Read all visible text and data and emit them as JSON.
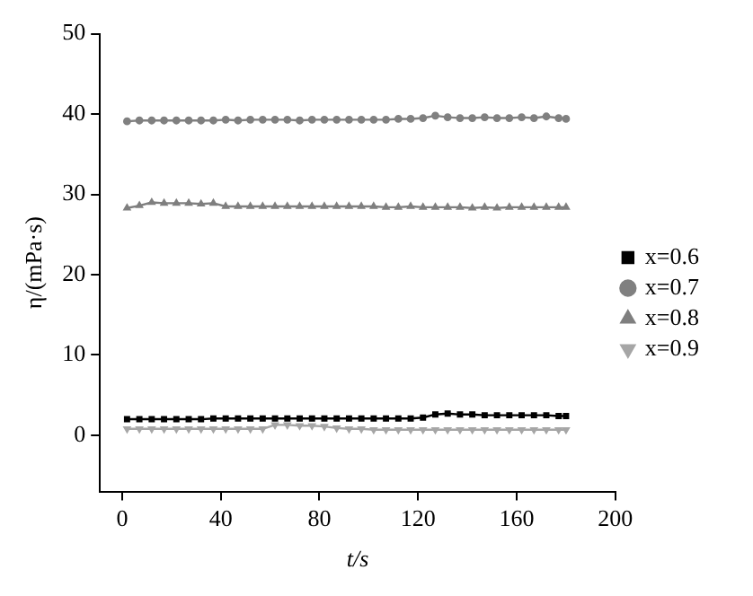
{
  "chart_data": {
    "type": "line",
    "xlabel": "t/s",
    "ylabel": "η/(mPa·s)",
    "xlim": [
      -9,
      200
    ],
    "xticks": [
      0,
      40,
      80,
      120,
      160,
      200
    ],
    "ylim": [
      -7,
      50
    ],
    "yticks": [
      0,
      10,
      20,
      30,
      40,
      50
    ],
    "grid": false,
    "legend": "right",
    "line_style": "solid",
    "x": [
      2,
      7,
      12,
      17,
      22,
      27,
      32,
      37,
      42,
      47,
      52,
      57,
      62,
      67,
      72,
      77,
      82,
      87,
      92,
      97,
      102,
      107,
      112,
      117,
      122,
      127,
      132,
      137,
      142,
      147,
      152,
      157,
      162,
      167,
      172,
      177,
      180
    ],
    "series": [
      {
        "name": "x=0.6",
        "color": "#000000",
        "marker": "square",
        "values": [
          2.0,
          2.0,
          2.0,
          2.0,
          2.0,
          2.0,
          2.0,
          2.1,
          2.1,
          2.1,
          2.1,
          2.1,
          2.1,
          2.1,
          2.1,
          2.1,
          2.1,
          2.1,
          2.1,
          2.1,
          2.1,
          2.1,
          2.1,
          2.1,
          2.2,
          2.6,
          2.7,
          2.6,
          2.6,
          2.5,
          2.5,
          2.5,
          2.5,
          2.5,
          2.5,
          2.4,
          2.4
        ]
      },
      {
        "name": "x=0.7",
        "color": "#808080",
        "marker": "circle",
        "values": [
          39.1,
          39.2,
          39.2,
          39.2,
          39.2,
          39.2,
          39.2,
          39.2,
          39.3,
          39.2,
          39.3,
          39.3,
          39.3,
          39.3,
          39.2,
          39.3,
          39.3,
          39.3,
          39.3,
          39.3,
          39.3,
          39.3,
          39.4,
          39.4,
          39.5,
          39.8,
          39.6,
          39.5,
          39.5,
          39.6,
          39.5,
          39.5,
          39.6,
          39.5,
          39.7,
          39.5,
          39.4
        ]
      },
      {
        "name": "x=0.8",
        "color": "#7f7f7f",
        "marker": "triangle",
        "values": [
          28.3,
          28.6,
          29.0,
          28.9,
          28.9,
          28.9,
          28.8,
          28.9,
          28.5,
          28.5,
          28.5,
          28.5,
          28.5,
          28.5,
          28.5,
          28.5,
          28.5,
          28.5,
          28.5,
          28.5,
          28.5,
          28.4,
          28.4,
          28.5,
          28.4,
          28.4,
          28.4,
          28.4,
          28.3,
          28.4,
          28.3,
          28.4,
          28.4,
          28.4,
          28.4,
          28.4,
          28.4
        ]
      },
      {
        "name": "x=0.9",
        "color": "#a6a6a6",
        "marker": "triangle-down",
        "values": [
          0.8,
          0.8,
          0.8,
          0.8,
          0.8,
          0.8,
          0.8,
          0.8,
          0.8,
          0.8,
          0.8,
          0.8,
          1.3,
          1.3,
          1.2,
          1.2,
          1.1,
          0.9,
          0.8,
          0.8,
          0.7,
          0.7,
          0.7,
          0.7,
          0.7,
          0.7,
          0.7,
          0.7,
          0.7,
          0.7,
          0.7,
          0.7,
          0.7,
          0.7,
          0.7,
          0.7,
          0.7
        ]
      }
    ]
  }
}
